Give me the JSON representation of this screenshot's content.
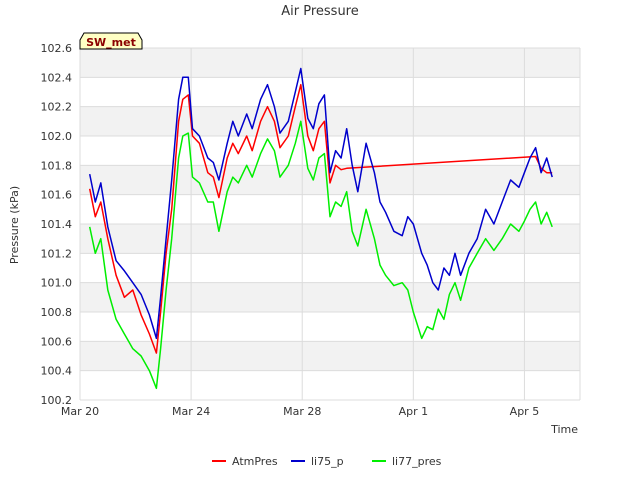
{
  "chart_data": {
    "type": "line",
    "title": "Air Pressure",
    "xlabel": "Time",
    "ylabel": "Pressure (kPa)",
    "ylim": [
      100.2,
      102.6
    ],
    "y_ticks": [
      100.2,
      100.4,
      100.6,
      100.8,
      101.0,
      101.2,
      101.4,
      101.6,
      101.8,
      102.0,
      102.2,
      102.4,
      102.6
    ],
    "xlim_days": [
      0,
      18
    ],
    "x_ticks": [
      {
        "label": "Mar 20",
        "day": 0
      },
      {
        "label": "Mar 24",
        "day": 4
      },
      {
        "label": "Mar 28",
        "day": 8
      },
      {
        "label": "Apr 1",
        "day": 12
      },
      {
        "label": "Apr 5",
        "day": 16
      }
    ],
    "badge": "SW_met",
    "grid": true,
    "legend_position": "bottom-center",
    "series": [
      {
        "name": "AtmPres",
        "color": "#ff0000",
        "x": [
          0.35,
          0.55,
          0.75,
          1.0,
          1.3,
          1.6,
          1.9,
          2.2,
          2.5,
          2.75,
          2.9,
          3.1,
          3.3,
          3.55,
          3.7,
          3.9,
          4.05,
          4.3,
          4.6,
          4.8,
          5.0,
          5.3,
          5.5,
          5.7,
          6.0,
          6.2,
          6.5,
          6.75,
          7.0,
          7.2,
          7.5,
          7.75,
          7.95,
          8.2,
          8.4,
          8.6,
          8.8,
          9.0,
          9.2,
          9.4,
          9.6,
          16.4,
          16.6,
          16.8,
          17.0
        ],
        "y": [
          101.64,
          101.45,
          101.55,
          101.3,
          101.05,
          100.9,
          100.95,
          100.78,
          100.65,
          100.52,
          100.8,
          101.2,
          101.5,
          102.1,
          102.25,
          102.28,
          102.0,
          101.95,
          101.75,
          101.72,
          101.58,
          101.85,
          101.95,
          101.88,
          102.0,
          101.9,
          102.1,
          102.2,
          102.1,
          101.92,
          102.0,
          102.2,
          102.35,
          102.0,
          101.9,
          102.05,
          102.1,
          101.68,
          101.8,
          101.77,
          101.78,
          101.86,
          101.78,
          101.75,
          101.75
        ]
      },
      {
        "name": "li75_p",
        "color": "#0000cc",
        "x": [
          0.35,
          0.55,
          0.75,
          1.0,
          1.3,
          1.6,
          1.9,
          2.2,
          2.5,
          2.75,
          2.9,
          3.1,
          3.3,
          3.55,
          3.7,
          3.9,
          4.05,
          4.3,
          4.6,
          4.8,
          5.0,
          5.3,
          5.5,
          5.7,
          6.0,
          6.2,
          6.5,
          6.75,
          7.0,
          7.2,
          7.5,
          7.75,
          7.95,
          8.2,
          8.4,
          8.6,
          8.8,
          9.0,
          9.2,
          9.4,
          9.6,
          9.8,
          10.0,
          10.3,
          10.6,
          10.8,
          11.0,
          11.3,
          11.6,
          11.8,
          12.0,
          12.3,
          12.5,
          12.7,
          12.9,
          13.1,
          13.3,
          13.5,
          13.7,
          14.0,
          14.3,
          14.6,
          14.9,
          15.2,
          15.5,
          15.8,
          16.0,
          16.2,
          16.4,
          16.6,
          16.8,
          17.0
        ],
        "y": [
          101.74,
          101.55,
          101.68,
          101.38,
          101.15,
          101.08,
          101.0,
          100.92,
          100.78,
          100.62,
          100.9,
          101.3,
          101.7,
          102.25,
          102.4,
          102.4,
          102.05,
          102.0,
          101.85,
          101.82,
          101.7,
          101.95,
          102.1,
          102.0,
          102.15,
          102.05,
          102.25,
          102.35,
          102.2,
          102.02,
          102.1,
          102.3,
          102.46,
          102.12,
          102.05,
          102.22,
          102.28,
          101.75,
          101.9,
          101.85,
          102.05,
          101.8,
          101.62,
          101.95,
          101.75,
          101.55,
          101.48,
          101.35,
          101.32,
          101.45,
          101.4,
          101.2,
          101.12,
          101.0,
          100.95,
          101.1,
          101.05,
          101.2,
          101.05,
          101.2,
          101.3,
          101.5,
          101.4,
          101.55,
          101.7,
          101.65,
          101.75,
          101.85,
          101.92,
          101.75,
          101.85,
          101.72
        ]
      },
      {
        "name": "li77_pres",
        "color": "#00ee00",
        "x": [
          0.35,
          0.55,
          0.75,
          1.0,
          1.3,
          1.6,
          1.9,
          2.2,
          2.5,
          2.75,
          2.9,
          3.1,
          3.3,
          3.55,
          3.7,
          3.9,
          4.05,
          4.3,
          4.6,
          4.8,
          5.0,
          5.3,
          5.5,
          5.7,
          6.0,
          6.2,
          6.5,
          6.75,
          7.0,
          7.2,
          7.5,
          7.75,
          7.95,
          8.2,
          8.4,
          8.6,
          8.8,
          9.0,
          9.2,
          9.4,
          9.6,
          9.8,
          10.0,
          10.3,
          10.6,
          10.8,
          11.0,
          11.3,
          11.6,
          11.8,
          12.0,
          12.3,
          12.5,
          12.7,
          12.9,
          13.1,
          13.3,
          13.5,
          13.7,
          14.0,
          14.3,
          14.6,
          14.9,
          15.2,
          15.5,
          15.8,
          16.0,
          16.2,
          16.4,
          16.6,
          16.8,
          17.0
        ],
        "y": [
          101.38,
          101.2,
          101.3,
          100.95,
          100.75,
          100.65,
          100.55,
          100.5,
          100.4,
          100.28,
          100.55,
          100.95,
          101.3,
          101.85,
          102.0,
          102.02,
          101.72,
          101.68,
          101.55,
          101.55,
          101.35,
          101.62,
          101.72,
          101.68,
          101.8,
          101.72,
          101.88,
          101.98,
          101.9,
          101.72,
          101.8,
          101.95,
          102.1,
          101.78,
          101.7,
          101.85,
          101.88,
          101.45,
          101.55,
          101.52,
          101.62,
          101.35,
          101.25,
          101.5,
          101.3,
          101.12,
          101.05,
          100.98,
          101.0,
          100.95,
          100.8,
          100.62,
          100.7,
          100.68,
          100.82,
          100.75,
          100.92,
          101.0,
          100.88,
          101.1,
          101.2,
          101.3,
          101.22,
          101.3,
          101.4,
          101.35,
          101.42,
          101.5,
          101.55,
          101.4,
          101.48,
          101.38
        ]
      }
    ]
  }
}
